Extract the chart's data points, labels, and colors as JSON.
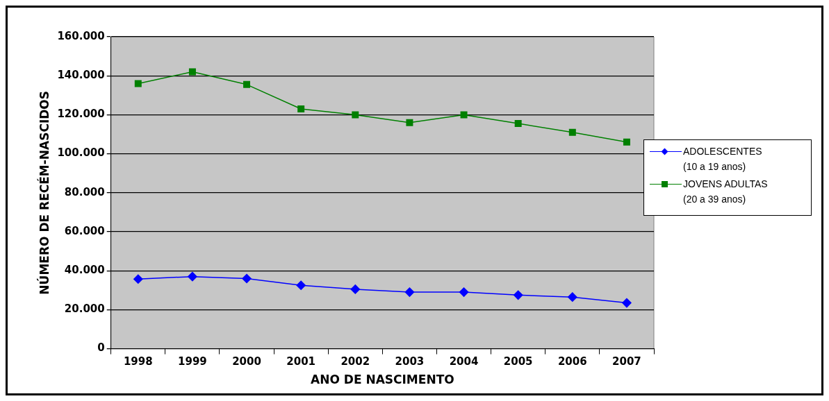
{
  "chart_data": {
    "type": "line",
    "xlabel": "ANO DE NASCIMENTO",
    "ylabel": "NÚMERO DE RECÉM-NASCIDOS",
    "categories": [
      "1998",
      "1999",
      "2000",
      "2001",
      "2002",
      "2003",
      "2004",
      "2005",
      "2006",
      "2007"
    ],
    "series": [
      {
        "name": "ADOLESCENTES\n(10 a 19 anos)",
        "color": "#0000ff",
        "marker": "diamond",
        "values": [
          35700,
          37000,
          36000,
          32500,
          30500,
          29000,
          29000,
          27500,
          26500,
          23500
        ]
      },
      {
        "name": "JOVENS ADULTAS\n(20 a 39 anos)",
        "color": "#008000",
        "marker": "square",
        "values": [
          136000,
          142000,
          135500,
          123000,
          120000,
          116000,
          120000,
          115500,
          111000,
          106000
        ]
      }
    ],
    "ylim": [
      0,
      160000
    ],
    "yticks": [
      0,
      {
        "value": 20000,
        "label": "20.000"
      },
      {
        "value": 40000,
        "label": "40.000"
      },
      {
        "value": 60000,
        "label": "60.000"
      },
      {
        "value": 80000,
        "label": "80.000"
      },
      {
        "value": 100000,
        "label": "100.000"
      },
      {
        "value": 120000,
        "label": "120.000"
      },
      {
        "value": 140000,
        "label": "140.000"
      },
      {
        "value": 160000,
        "label": "160.000"
      }
    ],
    "grid": "y",
    "legend": "right",
    "line_style": "solid"
  }
}
